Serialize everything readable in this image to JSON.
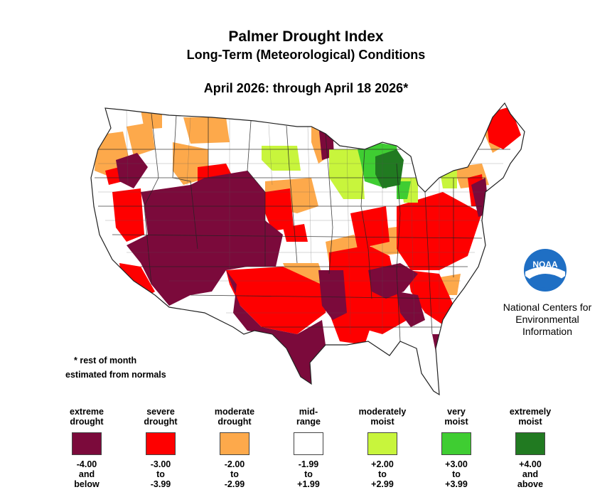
{
  "title": "Palmer Drought Index",
  "subtitle": "Long-Term (Meteorological) Conditions",
  "period": "April 2026: through April 18 2026*",
  "note_line1": "* rest of month",
  "note_line2": "estimated from normals",
  "org": {
    "logo_text": "NOAA",
    "line1": "National Centers for",
    "line2": "Environmental",
    "line3": "Information"
  },
  "colors": {
    "extreme_drought": "#7b0a3b",
    "severe_drought": "#fe0000",
    "moderate_drought": "#fda94b",
    "mid_range": "#ffffff",
    "moderately_moist": "#c8f53c",
    "very_moist": "#3fcd32",
    "extremely_moist": "#217a21"
  },
  "legend": [
    {
      "label1": "extreme",
      "label2": "drought",
      "r1": "-4.00",
      "r2": "and",
      "r3": "below",
      "color": "#7b0a3b"
    },
    {
      "label1": "severe",
      "label2": "drought",
      "r1": "-3.00",
      "r2": "to",
      "r3": "-3.99",
      "color": "#fe0000"
    },
    {
      "label1": "moderate",
      "label2": "drought",
      "r1": "-2.00",
      "r2": "to",
      "r3": "-2.99",
      "color": "#fda94b"
    },
    {
      "label1": "mid-",
      "label2": "range",
      "r1": "-1.99",
      "r2": "to",
      "r3": "+1.99",
      "color": "#ffffff"
    },
    {
      "label1": "moderately",
      "label2": "moist",
      "r1": "+2.00",
      "r2": "to",
      "r3": "+2.99",
      "color": "#c8f53c"
    },
    {
      "label1": "very",
      "label2": "moist",
      "r1": "+3.00",
      "r2": "to",
      "r3": "+3.99",
      "color": "#3fcd32"
    },
    {
      "label1": "extremely",
      "label2": "moist",
      "r1": "+4.00",
      "r2": "and",
      "r3": "above",
      "color": "#217a21"
    }
  ]
}
